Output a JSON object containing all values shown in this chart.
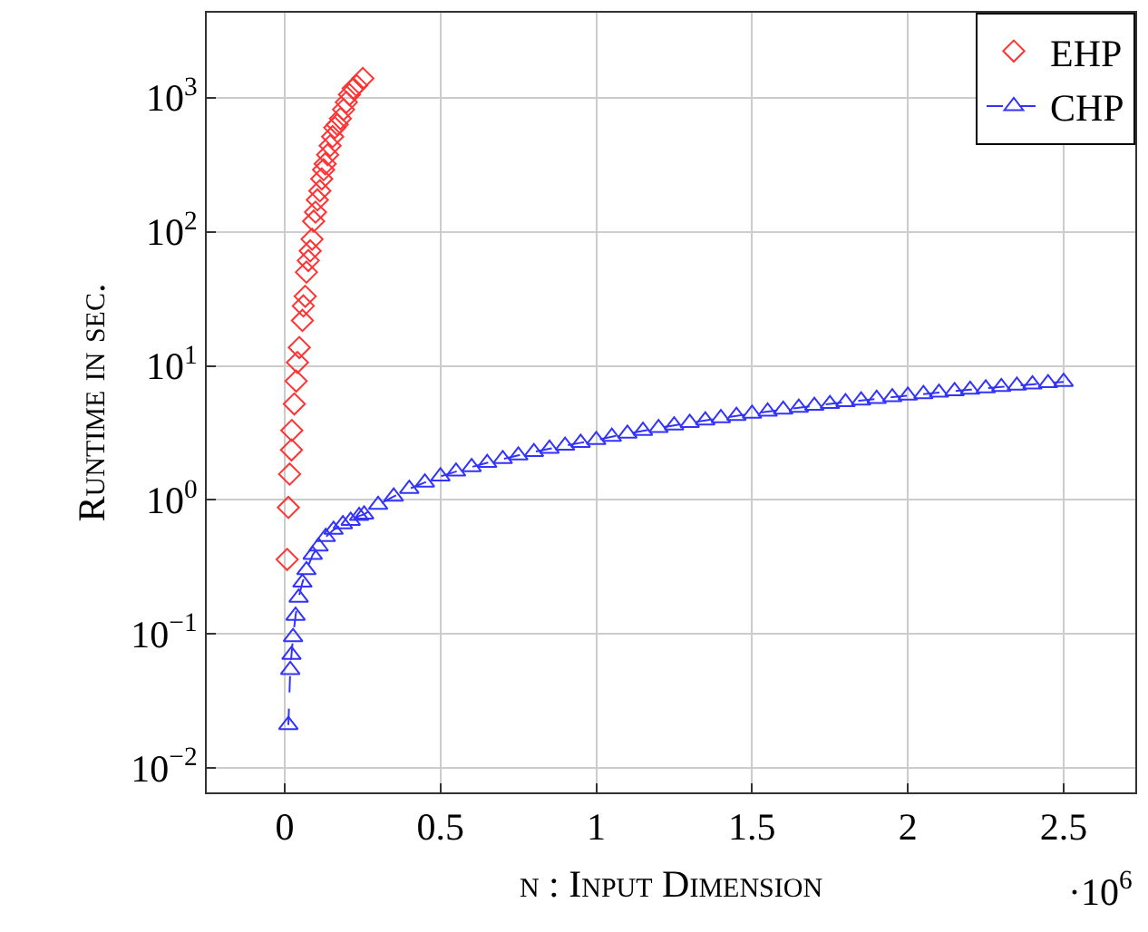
{
  "chart_data": {
    "type": "scatter",
    "xlabel": "n : Input Dimension",
    "ylabel": "Runtime in sec.",
    "annotations": [
      "·10$^{6}$"
    ],
    "log": "y",
    "grid": true,
    "legend": "top right",
    "xlim": [
      -0.25,
      2.73
    ],
    "xticks": [
      0,
      0.5,
      1,
      1.5,
      2,
      2.5
    ],
    "ylim": [
      0.0066,
      4300
    ],
    "yticks": [
      {
        "value": 0.01,
        "label": "10$^{−2}$"
      },
      {
        "value": 0.1,
        "label": "10$^{−1}$"
      },
      {
        "value": 1,
        "label": "10$^{0}$"
      },
      {
        "value": 10,
        "label": "10$^{1}$"
      },
      {
        "value": 100,
        "label": "10$^{2}$"
      },
      {
        "value": 1000,
        "label": "10$^{3}$"
      }
    ],
    "series": [
      {
        "name": "EHP",
        "marker": "diamond",
        "color": "#ff3333",
        "x": [
          0.008,
          0.012,
          0.016,
          0.022,
          0.023,
          0.031,
          0.037,
          0.041,
          0.047,
          0.057,
          0.06,
          0.066,
          0.07,
          0.076,
          0.082,
          0.088,
          0.093,
          0.099,
          0.105,
          0.113,
          0.119,
          0.125,
          0.13,
          0.138,
          0.146,
          0.154,
          0.161,
          0.169,
          0.179,
          0.189,
          0.198,
          0.208,
          0.22,
          0.231,
          0.251
        ],
        "values": [
          0.36,
          0.88,
          1.56,
          2.36,
          3.3,
          5.2,
          7.7,
          10.6,
          13.7,
          21.8,
          28,
          33,
          50,
          61,
          72,
          88,
          120,
          140,
          173,
          202,
          248,
          290,
          321,
          375,
          438,
          512,
          597,
          630,
          698,
          815,
          923,
          1054,
          1170,
          1230,
          1390
        ]
      },
      {
        "name": "CHP",
        "type": "line",
        "marker": "triangle",
        "line_style": "dashed",
        "color": "#3333ff",
        "x": [
          0.012,
          0.018,
          0.022,
          0.027,
          0.035,
          0.045,
          0.057,
          0.07,
          0.09,
          0.109,
          0.132,
          0.157,
          0.187,
          0.212,
          0.239,
          0.255,
          0.3,
          0.35,
          0.4,
          0.45,
          0.5,
          0.55,
          0.6,
          0.65,
          0.7,
          0.75,
          0.8,
          0.85,
          0.9,
          0.95,
          1.0,
          1.05,
          1.1,
          1.15,
          1.2,
          1.25,
          1.3,
          1.35,
          1.4,
          1.45,
          1.5,
          1.55,
          1.6,
          1.65,
          1.7,
          1.75,
          1.8,
          1.85,
          1.9,
          1.95,
          2.0,
          2.05,
          2.1,
          2.15,
          2.2,
          2.25,
          2.3,
          2.35,
          2.4,
          2.45,
          2.5
        ],
        "values": [
          0.021,
          0.054,
          0.07,
          0.095,
          0.137,
          0.187,
          0.242,
          0.3,
          0.39,
          0.45,
          0.53,
          0.6,
          0.66,
          0.7,
          0.76,
          0.78,
          0.92,
          1.06,
          1.21,
          1.35,
          1.5,
          1.63,
          1.76,
          1.89,
          2.02,
          2.15,
          2.28,
          2.41,
          2.54,
          2.67,
          2.8,
          2.96,
          3.12,
          3.28,
          3.44,
          3.6,
          3.76,
          3.92,
          4.08,
          4.24,
          4.4,
          4.56,
          4.72,
          4.88,
          5.04,
          5.2,
          5.36,
          5.52,
          5.68,
          5.84,
          6.0,
          6.16,
          6.32,
          6.48,
          6.64,
          6.8,
          6.96,
          7.12,
          7.28,
          7.44,
          7.6
        ]
      }
    ]
  }
}
